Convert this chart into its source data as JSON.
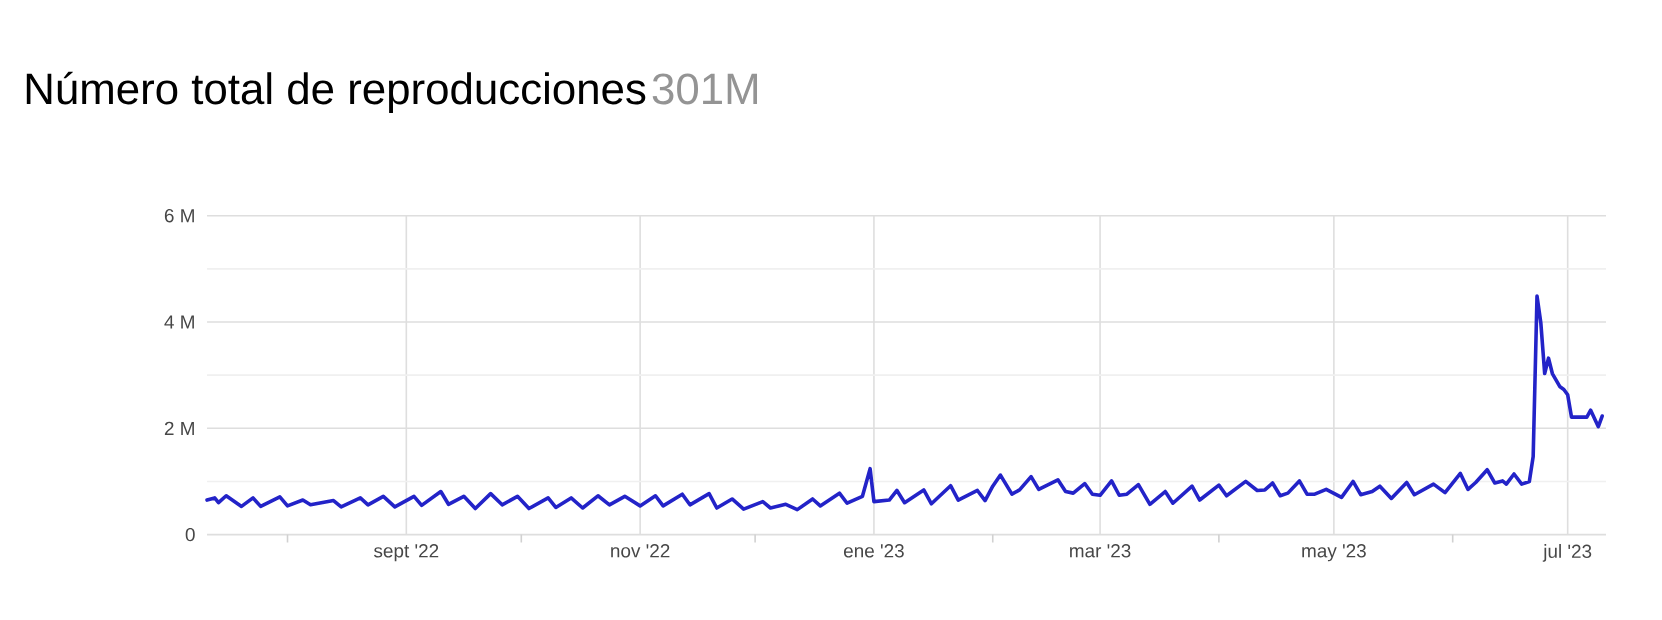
{
  "chart_data": {
    "type": "line",
    "title": "Número total de reproducciones",
    "subtitle": "301M",
    "xlim": [
      "2022-07-11",
      "2023-07-11"
    ],
    "xticks": [
      {
        "value": "2022-08-01",
        "label": null
      },
      {
        "value": "2022-09-01",
        "label": "sept '22"
      },
      {
        "value": "2022-10-01",
        "label": null
      },
      {
        "value": "2022-11-01",
        "label": "nov '22"
      },
      {
        "value": "2022-12-01",
        "label": null
      },
      {
        "value": "2023-01-01",
        "label": "ene '23"
      },
      {
        "value": "2023-02-01",
        "label": null
      },
      {
        "value": "2023-03-01",
        "label": "mar '23"
      },
      {
        "value": "2023-04-01",
        "label": null
      },
      {
        "value": "2023-05-01",
        "label": "may '23"
      },
      {
        "value": "2023-06-01",
        "label": null
      },
      {
        "value": "2023-07-01",
        "label": "jul '23"
      }
    ],
    "ylim": [
      0,
      6
    ],
    "yticks": [
      {
        "value": 0,
        "label": "0"
      },
      {
        "value": 1,
        "label": null
      },
      {
        "value": 2,
        "label": "2 M"
      },
      {
        "value": 3,
        "label": null
      },
      {
        "value": 4,
        "label": "4 M"
      },
      {
        "value": 5,
        "label": null
      },
      {
        "value": 6,
        "label": "6 M"
      }
    ],
    "grid": true,
    "x": [
      "2022-07-11",
      "2022-07-13",
      "2022-07-14",
      "2022-07-16",
      "2022-07-20",
      "2022-07-23",
      "2022-07-25",
      "2022-07-30",
      "2022-08-01",
      "2022-08-05",
      "2022-08-07",
      "2022-08-13",
      "2022-08-15",
      "2022-08-20",
      "2022-08-22",
      "2022-08-26",
      "2022-08-29",
      "2022-09-03",
      "2022-09-05",
      "2022-09-10",
      "2022-09-12",
      "2022-09-16",
      "2022-09-19",
      "2022-09-23",
      "2022-09-26",
      "2022-09-30",
      "2022-10-03",
      "2022-10-08",
      "2022-10-10",
      "2022-10-14",
      "2022-10-17",
      "2022-10-21",
      "2022-10-24",
      "2022-10-28",
      "2022-11-01",
      "2022-11-05",
      "2022-11-07",
      "2022-11-12",
      "2022-11-14",
      "2022-11-19",
      "2022-11-21",
      "2022-11-25",
      "2022-11-28",
      "2022-12-03",
      "2022-12-05",
      "2022-12-09",
      "2022-12-12",
      "2022-12-16",
      "2022-12-18",
      "2022-12-23",
      "2022-12-25",
      "2022-12-29",
      "2022-12-31",
      "2023-01-01",
      "2023-01-05",
      "2023-01-07",
      "2023-01-09",
      "2023-01-14",
      "2023-01-16",
      "2023-01-21",
      "2023-01-23",
      "2023-01-28",
      "2023-01-30",
      "2023-02-01",
      "2023-02-03",
      "2023-02-06",
      "2023-02-08",
      "2023-02-11",
      "2023-02-13",
      "2023-02-18",
      "2023-02-20",
      "2023-02-22",
      "2023-02-25",
      "2023-02-27",
      "2023-03-01",
      "2023-03-04",
      "2023-03-06",
      "2023-03-08",
      "2023-03-11",
      "2023-03-14",
      "2023-03-18",
      "2023-03-20",
      "2023-03-25",
      "2023-03-27",
      "2023-04-01",
      "2023-04-03",
      "2023-04-08",
      "2023-04-11",
      "2023-04-13",
      "2023-04-15",
      "2023-04-17",
      "2023-04-19",
      "2023-04-22",
      "2023-04-24",
      "2023-04-26",
      "2023-04-29",
      "2023-05-03",
      "2023-05-06",
      "2023-05-08",
      "2023-05-11",
      "2023-05-13",
      "2023-05-16",
      "2023-05-20",
      "2023-05-22",
      "2023-05-27",
      "2023-05-30",
      "2023-06-03",
      "2023-06-05",
      "2023-06-07",
      "2023-06-10",
      "2023-06-12",
      "2023-06-14",
      "2023-06-15",
      "2023-06-17",
      "2023-06-19",
      "2023-06-21",
      "2023-06-22",
      "2023-06-23",
      "2023-06-24",
      "2023-06-25",
      "2023-06-26",
      "2023-06-27",
      "2023-06-29",
      "2023-06-30",
      "2023-07-01",
      "2023-07-02",
      "2023-07-04",
      "2023-07-06",
      "2023-07-07",
      "2023-07-09",
      "2023-07-10"
    ],
    "series": [
      {
        "color": "#2323c8",
        "values": [
          0.65,
          0.69,
          0.6,
          0.73,
          0.53,
          0.69,
          0.53,
          0.71,
          0.54,
          0.65,
          0.56,
          0.64,
          0.52,
          0.69,
          0.56,
          0.72,
          0.52,
          0.72,
          0.55,
          0.81,
          0.57,
          0.72,
          0.49,
          0.77,
          0.56,
          0.72,
          0.49,
          0.69,
          0.51,
          0.69,
          0.5,
          0.73,
          0.56,
          0.72,
          0.54,
          0.73,
          0.54,
          0.76,
          0.56,
          0.77,
          0.5,
          0.67,
          0.48,
          0.62,
          0.5,
          0.57,
          0.47,
          0.67,
          0.54,
          0.78,
          0.59,
          0.72,
          1.24,
          0.62,
          0.65,
          0.83,
          0.6,
          0.84,
          0.58,
          0.92,
          0.65,
          0.83,
          0.64,
          0.91,
          1.12,
          0.76,
          0.84,
          1.09,
          0.85,
          1.03,
          0.81,
          0.78,
          0.96,
          0.76,
          0.74,
          1.01,
          0.74,
          0.76,
          0.94,
          0.57,
          0.81,
          0.59,
          0.91,
          0.65,
          0.93,
          0.73,
          1.0,
          0.83,
          0.84,
          0.97,
          0.73,
          0.78,
          1.01,
          0.76,
          0.76,
          0.85,
          0.7,
          1.0,
          0.75,
          0.81,
          0.91,
          0.68,
          0.98,
          0.75,
          0.95,
          0.79,
          1.15,
          0.85,
          0.98,
          1.22,
          0.97,
          1.01,
          0.95,
          1.14,
          0.95,
          1.0,
          1.47,
          4.49,
          3.98,
          3.03,
          3.32,
          3.03,
          2.78,
          2.73,
          2.63,
          2.21,
          2.21,
          2.21,
          2.34,
          2.03,
          2.23
        ]
      }
    ]
  }
}
